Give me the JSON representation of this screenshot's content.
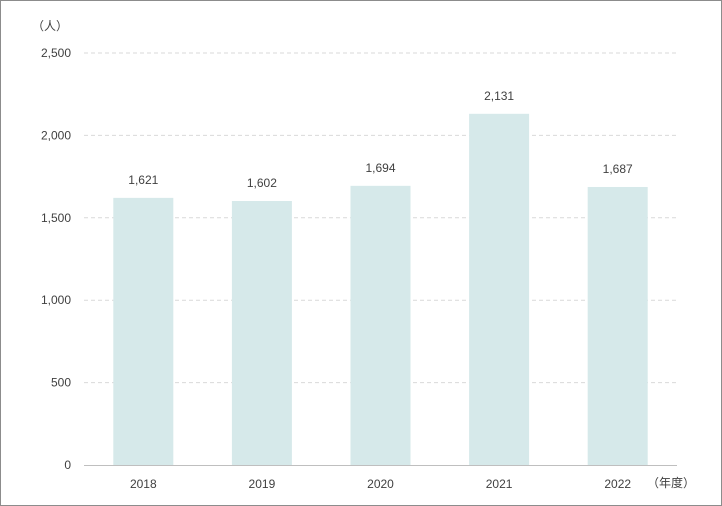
{
  "chart_data": {
    "type": "bar",
    "y_unit_label": "（人）",
    "x_unit_label": "（年度）",
    "categories": [
      "2018",
      "2019",
      "2020",
      "2021",
      "2022"
    ],
    "values": [
      1621,
      1602,
      1694,
      2131,
      1687
    ],
    "data_labels": [
      "1,621",
      "1,602",
      "1,694",
      "2,131",
      "1,687"
    ],
    "ylim": [
      0,
      2500
    ],
    "yticks": [
      0,
      500,
      1000,
      1500,
      2000,
      2500
    ],
    "ytick_labels": [
      "0",
      "500",
      "1,000",
      "1,500",
      "2,000",
      "2,500"
    ],
    "grid": true,
    "legend": "none",
    "bar_color": "#d6e9ea",
    "grid_color": "#d9d9d9",
    "axis_color": "#bfbfbf"
  }
}
